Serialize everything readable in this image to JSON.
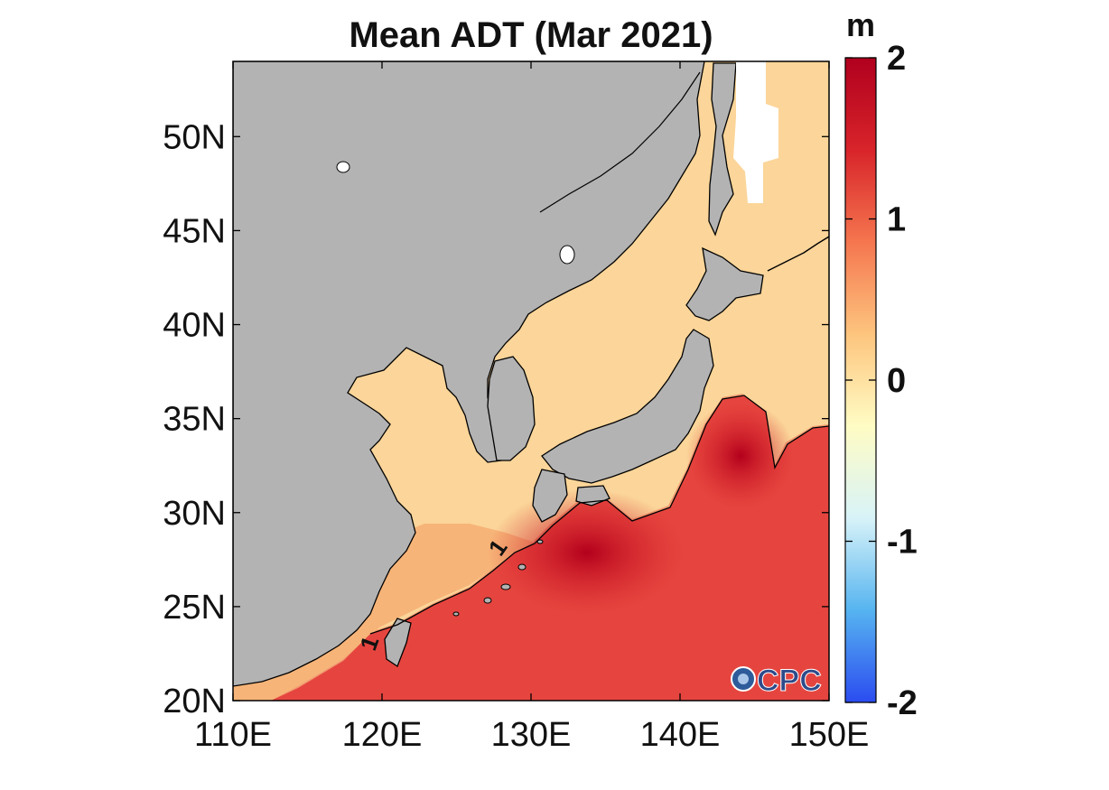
{
  "title": "Mean ADT (Mar 2021)",
  "colorbar": {
    "unit": "m",
    "ticks": [
      "2",
      "1",
      "0",
      "-1",
      "-2"
    ],
    "range": [
      -2,
      2
    ],
    "colors": [
      "#2b4cf0",
      "#56b4f0",
      "#d8f3f8",
      "#fffcc4",
      "#fdc57e",
      "#f5764f",
      "#d8242a",
      "#b0001e"
    ]
  },
  "axes": {
    "lon_ticks": [
      "110E",
      "120E",
      "130E",
      "140E",
      "150E"
    ],
    "lat_ticks": [
      "20N",
      "25N",
      "30N",
      "35N",
      "40N",
      "45N",
      "50N"
    ],
    "lon_range": [
      110,
      150
    ],
    "lat_range": [
      20,
      54
    ]
  },
  "contour_labels": [
    "1",
    "1"
  ],
  "logo_text": "CPC",
  "colors": {
    "land": "#b3b3b3",
    "sea_north": "#fbd79a",
    "sea_kuroshio": "#e6443f",
    "sea_core": "#c81a25"
  }
}
